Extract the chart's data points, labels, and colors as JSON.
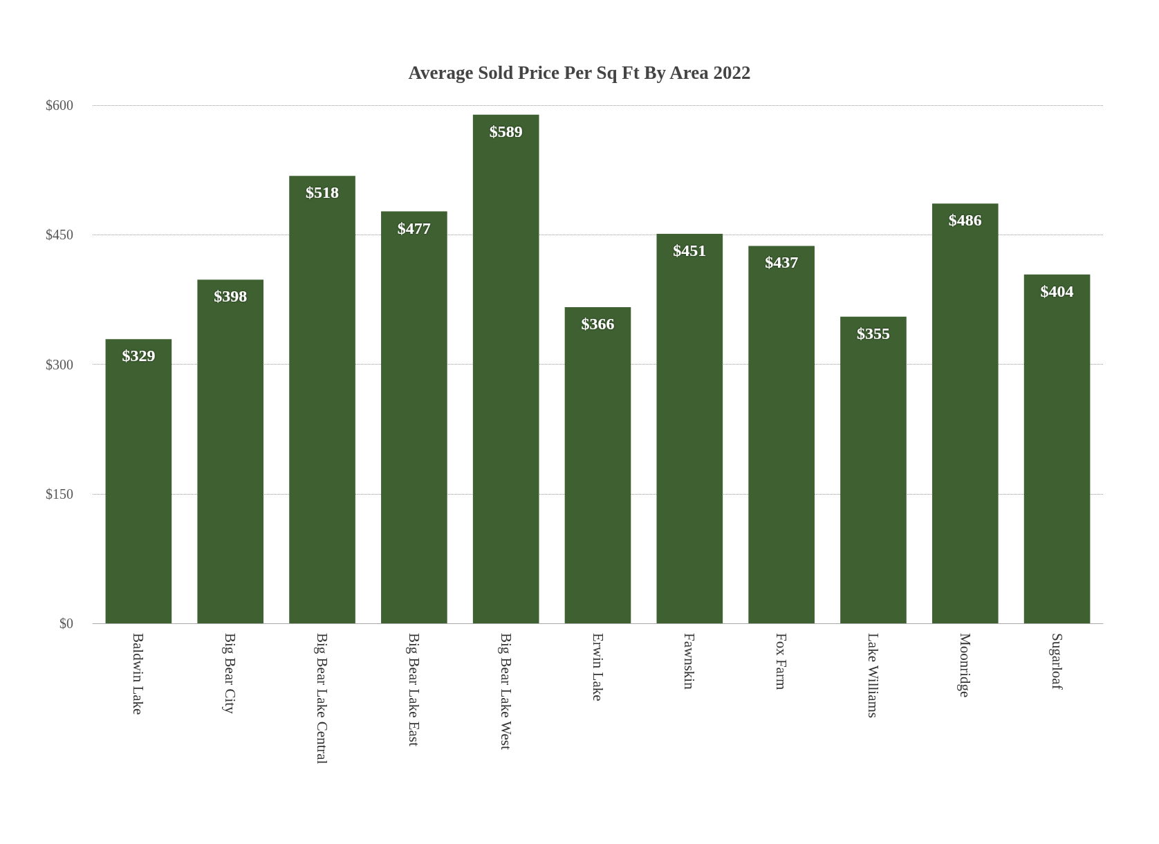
{
  "chart_data": {
    "type": "bar",
    "title": "Average Sold Price Per Sq Ft By Area 2022",
    "categories": [
      "Baldwin Lake",
      "Big Bear City",
      "Big Bear Lake Central",
      "Big Bear Lake East",
      "Big Bear Lake West",
      "Erwin Lake",
      "Fawnskin",
      "Fox Farm",
      "Lake Williams",
      "Moonridge",
      "Sugarloaf"
    ],
    "values": [
      329,
      398,
      518,
      477,
      589,
      366,
      451,
      437,
      355,
      486,
      404
    ],
    "value_labels": [
      "$329",
      "$398",
      "$518",
      "$477",
      "$589",
      "$366",
      "$451",
      "$437",
      "$355",
      "$486",
      "$404"
    ],
    "color": "#3f6132",
    "ylim": [
      0,
      600
    ],
    "yticks": [
      {
        "value": 0,
        "label": "$0"
      },
      {
        "value": 150,
        "label": "$150"
      },
      {
        "value": 300,
        "label": "$300"
      },
      {
        "value": 450,
        "label": "$450"
      },
      {
        "value": 600,
        "label": "$600"
      }
    ],
    "grid": "y"
  }
}
